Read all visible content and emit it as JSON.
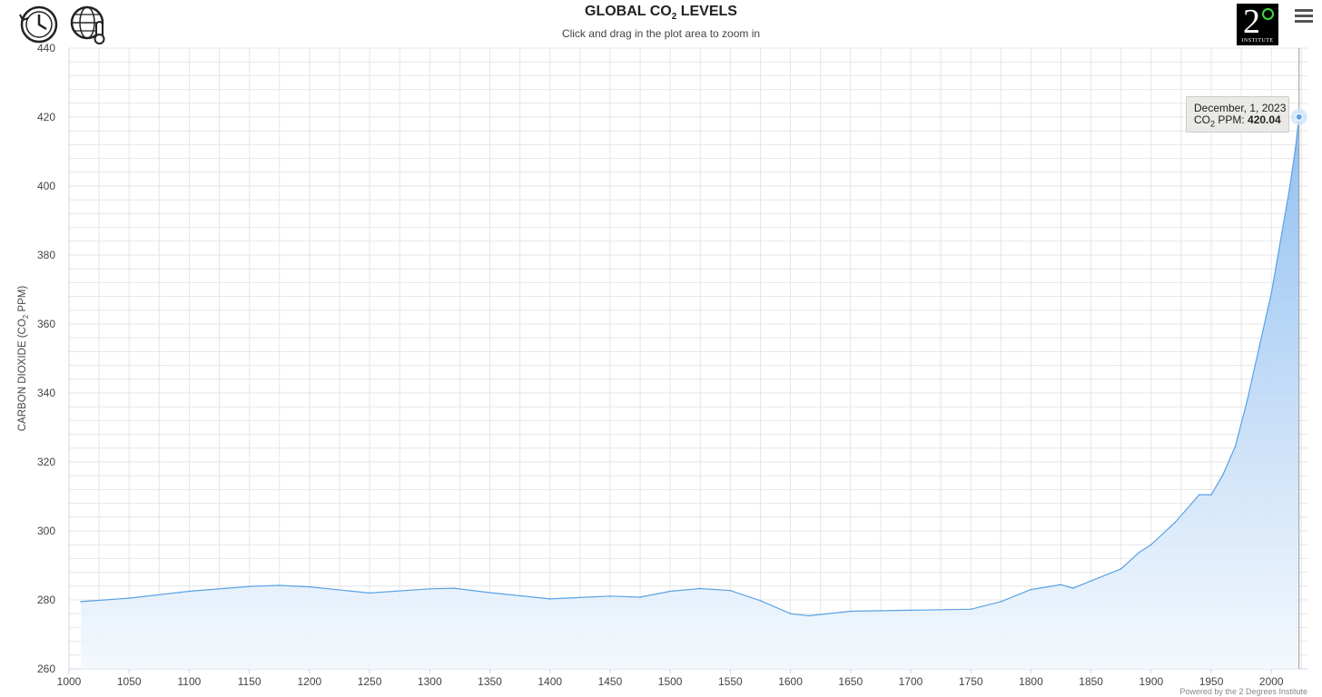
{
  "header": {
    "title": "GLOBAL CO",
    "title_sub": "2",
    "title_end": " LEVELS",
    "subtitle": "Click and drag in the plot area to zoom in"
  },
  "icons": {
    "history": "history-clock-icon",
    "globe": "globe-thermometer-icon",
    "menu": "hamburger-menu-icon"
  },
  "brand": {
    "numeral": "2",
    "label": "INSTITUTE"
  },
  "tooltip": {
    "date": "December, 1, 2023",
    "label": "CO",
    "label_sub": "2",
    "label_end": " PPM: ",
    "value": "420.04"
  },
  "credit": "Powered by the 2 Degrees Institute",
  "colors": {
    "line": "#5aa2e6",
    "fill_top": "#8cbcf0",
    "fill_bottom": "#f3f8fd",
    "grid": "#e6e6e6",
    "crosshair": "#999999"
  },
  "chart_data": {
    "type": "area",
    "title": "GLOBAL CO2 LEVELS",
    "subtitle": "Click and drag in the plot area to zoom in",
    "xlabel": "",
    "ylabel": "CARBON DIOXIDE (CO2 PPM)",
    "ylabel_parts": [
      "CARBON DIOXIDE (CO",
      "2",
      " PPM)"
    ],
    "xlim": [
      1000,
      2030
    ],
    "ylim": [
      260,
      440
    ],
    "x_ticks": [
      1000,
      1050,
      1100,
      1150,
      1200,
      1250,
      1300,
      1350,
      1400,
      1450,
      1500,
      1550,
      1600,
      1650,
      1700,
      1750,
      1800,
      1850,
      1900,
      1950,
      2000
    ],
    "y_ticks": [
      260,
      280,
      300,
      320,
      340,
      360,
      380,
      400,
      420,
      440
    ],
    "grid": true,
    "legend": "none",
    "series": [
      {
        "x": [
          1010,
          1050,
          1100,
          1150,
          1175,
          1200,
          1250,
          1300,
          1320,
          1350,
          1400,
          1450,
          1475,
          1500,
          1525,
          1550,
          1575,
          1600,
          1615,
          1650,
          1700,
          1750,
          1775,
          1800,
          1825,
          1835,
          1850,
          1875,
          1890,
          1900,
          1920,
          1940,
          1950,
          1960,
          1970,
          1980,
          1990,
          2000,
          2010,
          2015,
          2020,
          2023
        ],
        "y": [
          279.5,
          280.5,
          282.5,
          283.9,
          284.2,
          283.8,
          282.0,
          283.2,
          283.4,
          282.1,
          280.3,
          281.1,
          280.8,
          282.5,
          283.3,
          282.7,
          279.8,
          276.0,
          275.4,
          276.7,
          277.0,
          277.3,
          279.5,
          283.0,
          284.4,
          283.4,
          285.5,
          289.0,
          293.8,
          296.0,
          302.5,
          310.5,
          310.5,
          316.5,
          324.5,
          338.0,
          353.5,
          369.0,
          389.0,
          399.0,
          411.0,
          420.04
        ]
      }
    ],
    "highlight": {
      "x": 2023,
      "y": 420.04,
      "label": "December, 1, 2023"
    }
  }
}
